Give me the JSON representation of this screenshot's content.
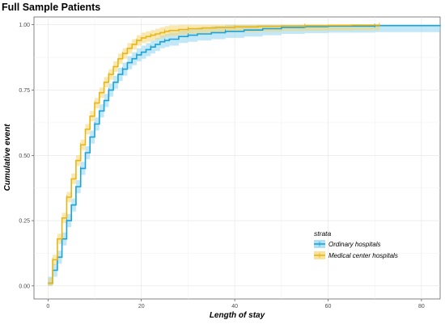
{
  "chart_data": {
    "type": "line",
    "step": true,
    "title": "Full Sample Patients",
    "xlabel": "Length of stay",
    "ylabel": "Cumulative event",
    "xlim": [
      -3,
      84
    ],
    "ylim": [
      -0.05,
      1.03
    ],
    "x_ticks": [
      0,
      20,
      40,
      60,
      80
    ],
    "y_ticks": [
      0.0,
      0.25,
      0.5,
      0.75,
      1.0
    ],
    "x_tick_labels": [
      "0",
      "20",
      "40",
      "60",
      "80"
    ],
    "y_tick_labels": [
      "0.00",
      "0.25",
      "0.50",
      "0.75",
      "1.00"
    ],
    "grid": true,
    "legend": {
      "title": "strata",
      "placement": "right",
      "entries": [
        "Ordinary hospitals",
        "Medical center hospitals"
      ]
    },
    "series": [
      {
        "name": "Ordinary hospitals",
        "color": "#1ba3d6",
        "band_color": "#8fd3f0",
        "x": [
          0,
          1,
          2,
          3,
          4,
          5,
          6,
          7,
          8,
          9,
          10,
          11,
          12,
          13,
          14,
          15,
          16,
          17,
          18,
          19,
          20,
          21,
          22,
          23,
          24,
          25,
          26,
          28,
          30,
          32,
          35,
          38,
          42,
          46,
          50,
          55,
          60,
          70,
          84
        ],
        "y": [
          0.01,
          0.06,
          0.11,
          0.18,
          0.25,
          0.31,
          0.38,
          0.45,
          0.51,
          0.57,
          0.62,
          0.67,
          0.71,
          0.75,
          0.78,
          0.81,
          0.83,
          0.855,
          0.87,
          0.885,
          0.895,
          0.905,
          0.915,
          0.925,
          0.935,
          0.94,
          0.945,
          0.955,
          0.96,
          0.965,
          0.97,
          0.975,
          0.98,
          0.985,
          0.99,
          0.993,
          0.995,
          0.997,
          1.0
        ],
        "band_halfwidth": 0.025
      },
      {
        "name": "Medical center hospitals",
        "color": "#e8b713",
        "band_color": "#f5d673",
        "x": [
          0,
          1,
          2,
          3,
          4,
          5,
          6,
          7,
          8,
          9,
          10,
          11,
          12,
          13,
          14,
          15,
          16,
          17,
          18,
          19,
          20,
          21,
          22,
          23,
          24,
          25,
          26,
          28,
          30,
          33,
          36,
          40,
          45,
          50,
          55,
          60,
          65,
          71
        ],
        "y": [
          0.01,
          0.1,
          0.18,
          0.26,
          0.34,
          0.41,
          0.48,
          0.54,
          0.6,
          0.65,
          0.7,
          0.74,
          0.78,
          0.81,
          0.84,
          0.87,
          0.89,
          0.91,
          0.925,
          0.94,
          0.95,
          0.955,
          0.96,
          0.965,
          0.97,
          0.975,
          0.978,
          0.982,
          0.985,
          0.988,
          0.99,
          0.992,
          0.994,
          0.996,
          0.997,
          0.998,
          0.999,
          1.0
        ],
        "band_halfwidth": 0.02
      }
    ]
  }
}
